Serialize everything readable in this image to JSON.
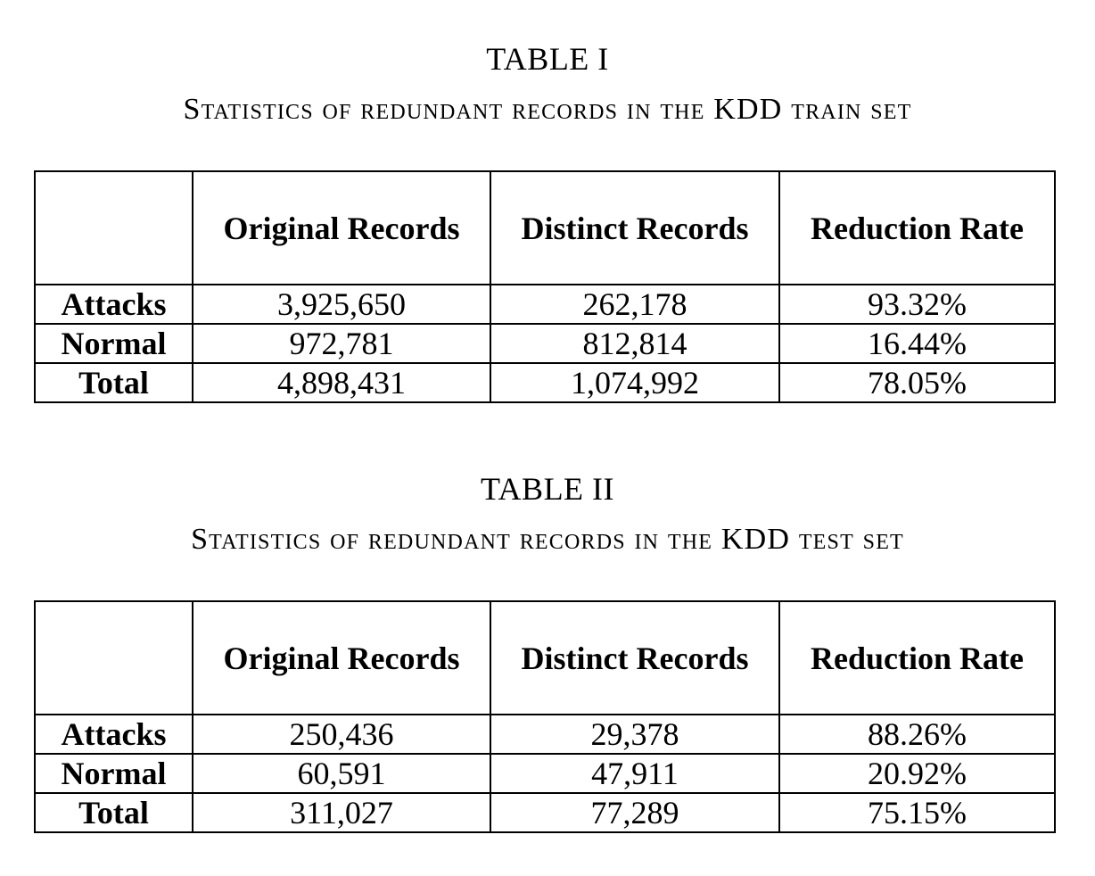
{
  "tables": [
    {
      "number": "TABLE I",
      "caption": "Statistics of redundant records in the KDD train set",
      "columns": [
        "",
        "Original Records",
        "Distinct Records",
        "Reduction Rate"
      ],
      "rows": [
        {
          "label": "Attacks",
          "original": "3,925,650",
          "distinct": "262,178",
          "rate": "93.32%"
        },
        {
          "label": "Normal",
          "original": "972,781",
          "distinct": "812,814",
          "rate": "16.44%"
        },
        {
          "label": "Total",
          "original": "4,898,431",
          "distinct": "1,074,992",
          "rate": "78.05%"
        }
      ]
    },
    {
      "number": "TABLE II",
      "caption": "Statistics of redundant records in the KDD test set",
      "columns": [
        "",
        "Original Records",
        "Distinct Records",
        "Reduction Rate"
      ],
      "rows": [
        {
          "label": "Attacks",
          "original": "250,436",
          "distinct": "29,378",
          "rate": "88.26%"
        },
        {
          "label": "Normal",
          "original": "60,591",
          "distinct": "47,911",
          "rate": "20.92%"
        },
        {
          "label": "Total",
          "original": "311,027",
          "distinct": "77,289",
          "rate": "75.15%"
        }
      ]
    }
  ]
}
